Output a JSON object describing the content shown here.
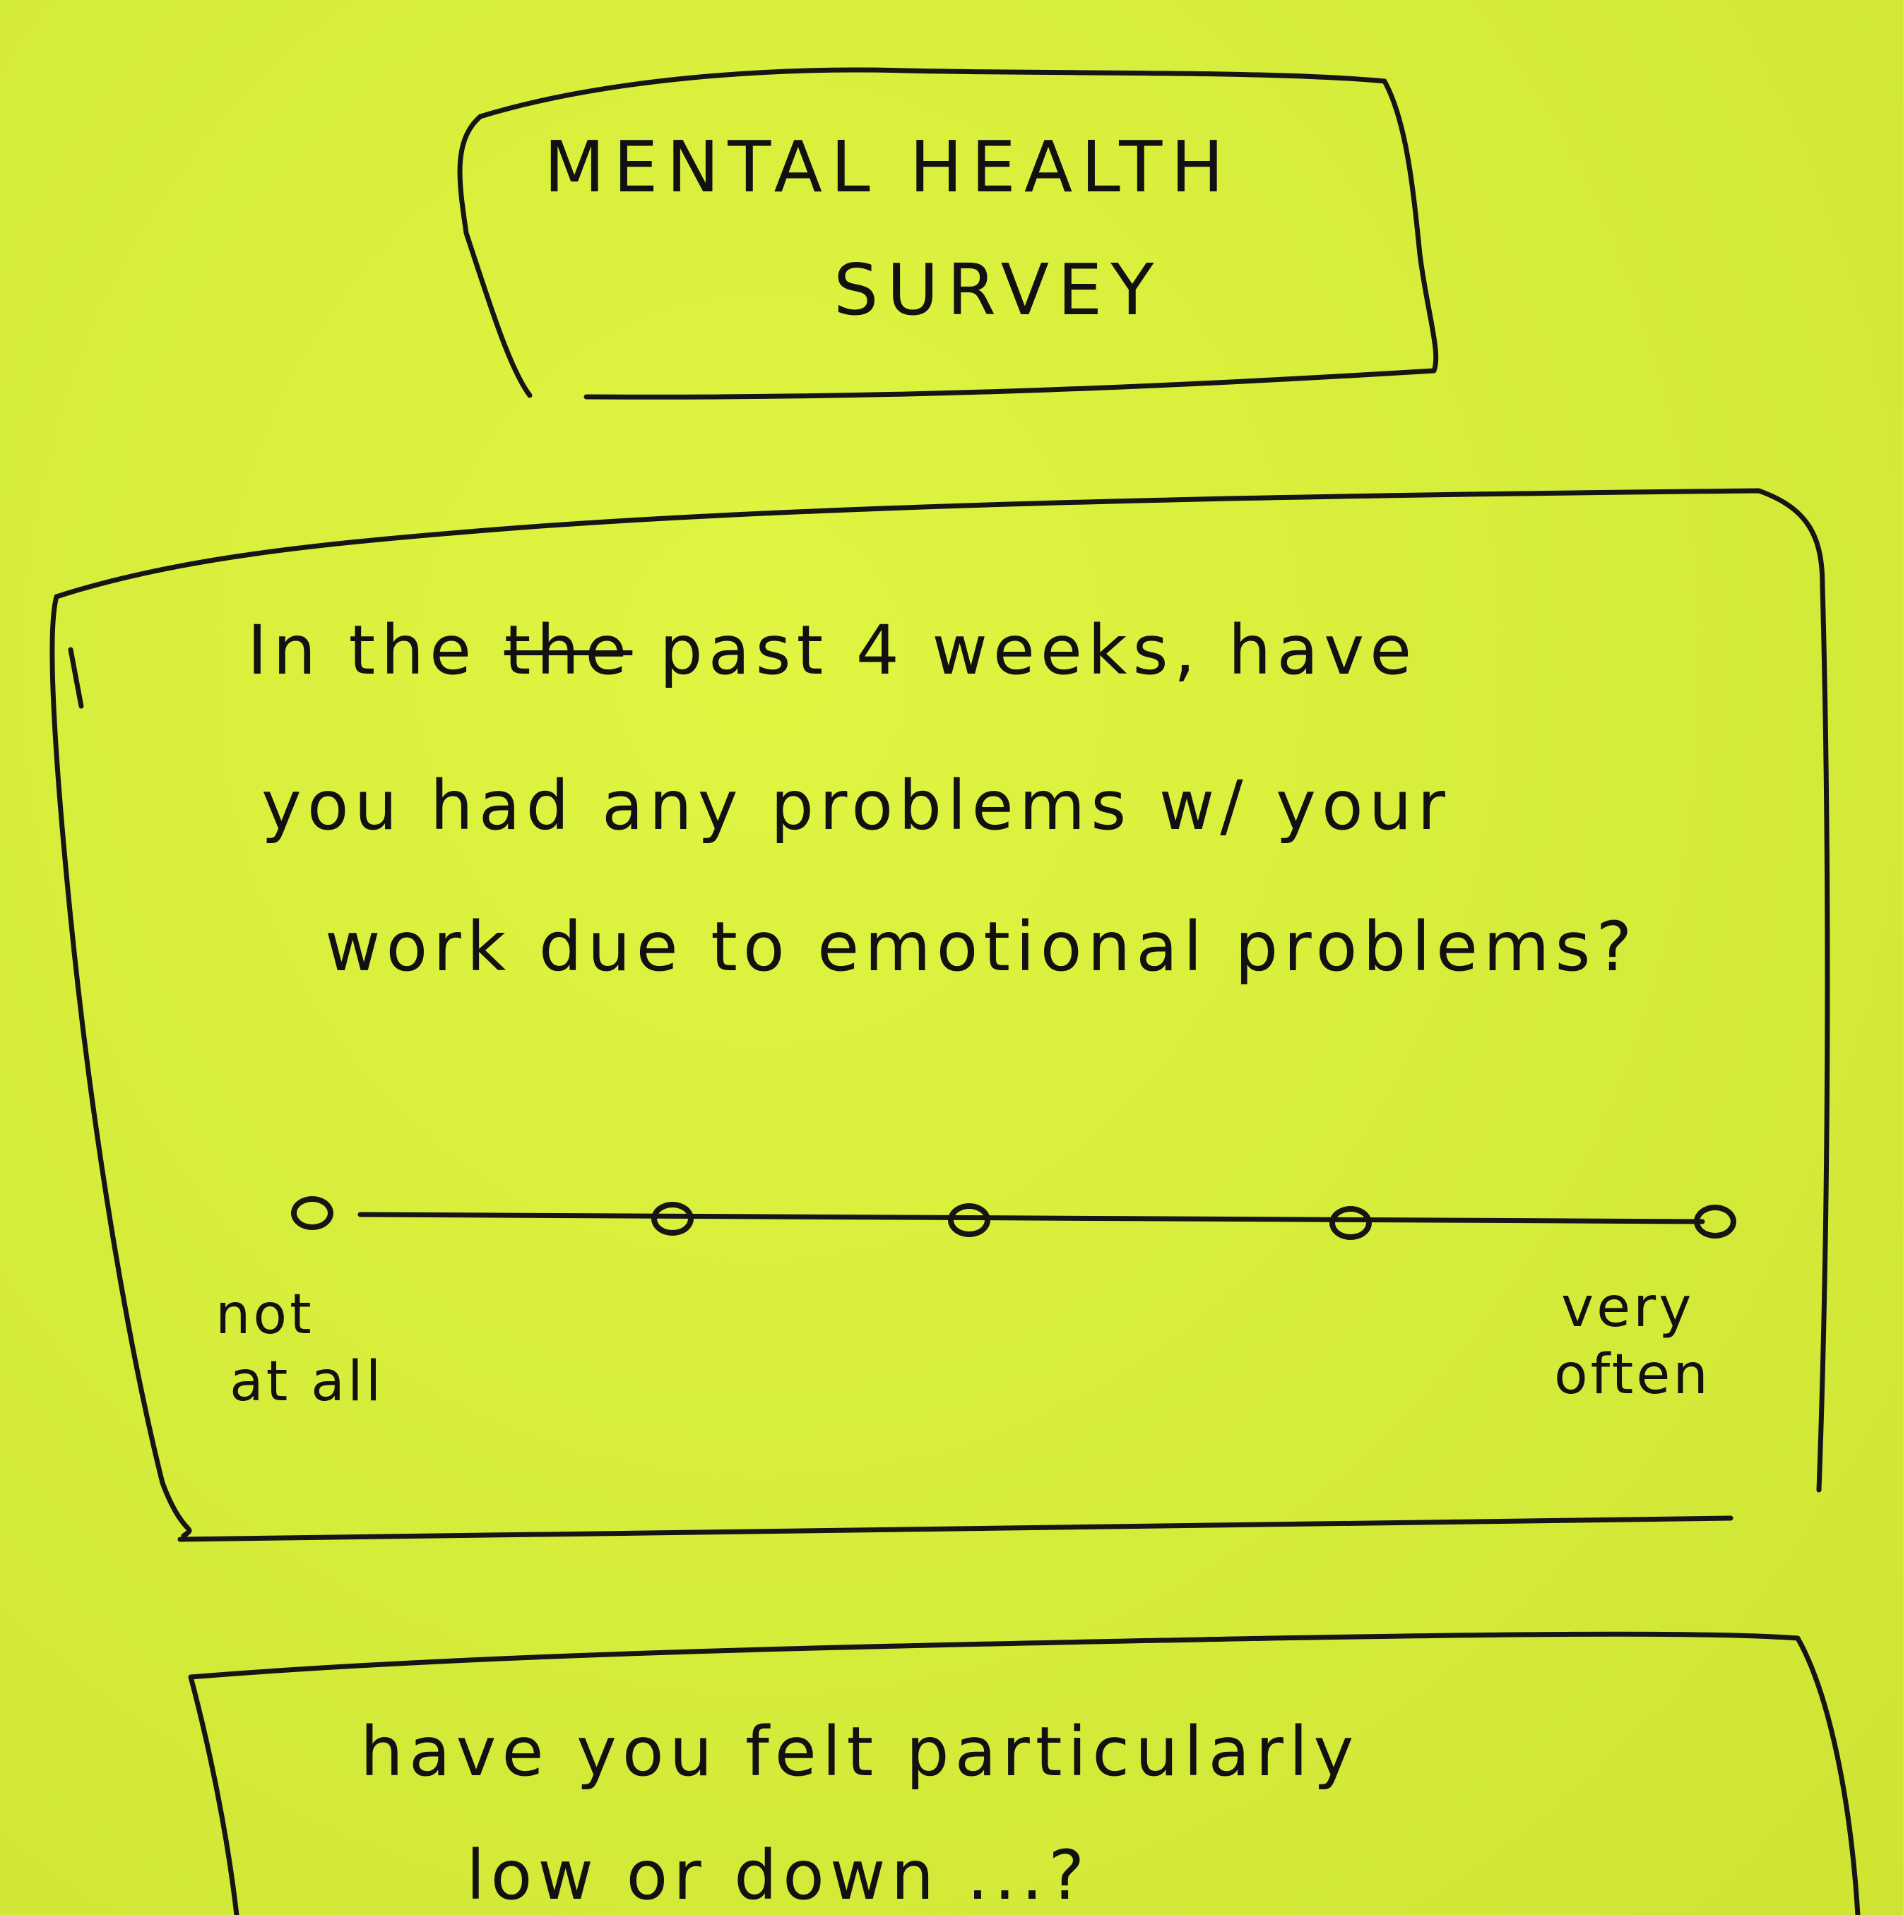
{
  "header": {
    "title_line1": "MENTAL HEALTH",
    "title_line2": "SURVEY"
  },
  "question1": {
    "line1_a": "In the",
    "line1_strike": "the",
    "line1_b": "past 4 weeks, have",
    "line2": "you had any problems w/ your",
    "line3": "work due to emotional problems?",
    "scale": {
      "option_count": 5,
      "low_label_1": "not",
      "low_label_2": "at all",
      "high_label_1": "very",
      "high_label_2": "often"
    }
  },
  "question2": {
    "line1": "have you felt particularly",
    "line2": "low or down ...?"
  },
  "colors": {
    "paper": "#d9ef3a",
    "ink": "#151515"
  }
}
